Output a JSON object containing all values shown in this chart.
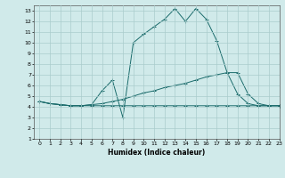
{
  "xlabel": "Humidex (Indice chaleur)",
  "xlim": [
    -0.5,
    23
  ],
  "ylim": [
    1,
    13.5
  ],
  "yticks": [
    1,
    2,
    3,
    4,
    5,
    6,
    7,
    8,
    9,
    10,
    11,
    12,
    13
  ],
  "xticks": [
    0,
    1,
    2,
    3,
    4,
    5,
    6,
    7,
    8,
    9,
    10,
    11,
    12,
    13,
    14,
    15,
    16,
    17,
    18,
    19,
    20,
    21,
    22,
    23
  ],
  "background_color": "#d0eaea",
  "grid_color": "#aacccc",
  "line_color": "#1a6b6b",
  "line1_x": [
    0,
    1,
    2,
    3,
    4,
    5,
    6,
    7,
    8,
    9,
    10,
    11,
    12,
    13,
    14,
    15,
    16,
    17,
    18,
    19,
    20,
    21,
    22,
    23
  ],
  "line1_y": [
    4.5,
    4.3,
    4.2,
    4.1,
    4.1,
    4.1,
    4.1,
    4.1,
    4.1,
    4.1,
    4.1,
    4.1,
    4.1,
    4.1,
    4.1,
    4.1,
    4.1,
    4.1,
    4.1,
    4.1,
    4.1,
    4.1,
    4.1,
    4.1
  ],
  "line2_x": [
    0,
    1,
    2,
    3,
    4,
    5,
    6,
    7,
    8,
    9,
    10,
    11,
    12,
    13,
    14,
    15,
    16,
    17,
    18,
    19,
    20,
    21,
    22,
    23
  ],
  "line2_y": [
    4.5,
    4.3,
    4.2,
    4.1,
    4.1,
    4.2,
    4.3,
    4.5,
    4.7,
    5.0,
    5.3,
    5.5,
    5.8,
    6.0,
    6.2,
    6.5,
    6.8,
    7.0,
    7.2,
    5.2,
    4.3,
    4.1,
    4.1,
    4.1
  ],
  "line3_x": [
    0,
    1,
    2,
    3,
    4,
    5,
    6,
    7,
    8,
    9,
    10,
    11,
    12,
    13,
    14,
    15,
    16,
    17,
    18,
    19,
    20,
    21,
    22,
    23
  ],
  "line3_y": [
    4.5,
    4.3,
    4.2,
    4.1,
    4.1,
    4.2,
    5.5,
    6.5,
    3.0,
    10.0,
    10.8,
    11.5,
    12.2,
    13.2,
    12.0,
    13.2,
    12.2,
    10.2,
    7.2,
    7.2,
    5.2,
    4.3,
    4.1,
    4.1
  ]
}
